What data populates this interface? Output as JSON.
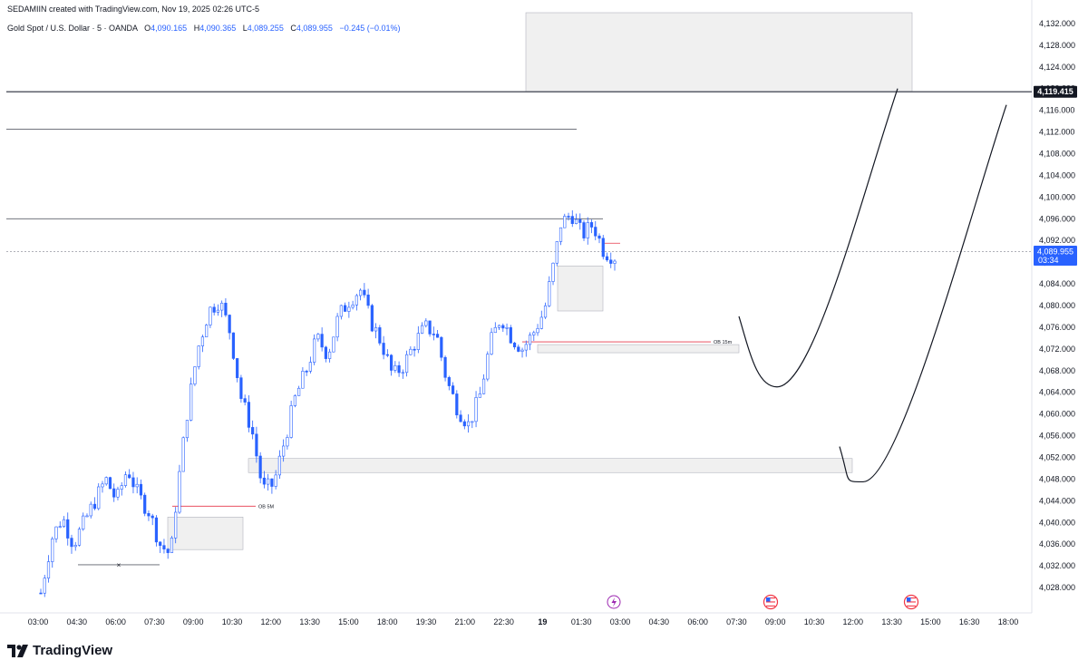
{
  "header": {
    "attribution": "SEDAMIIN created with TradingView.com, Nov 19, 2025 02:26 UTC-5",
    "symbol": "Gold Spot / U.S. Dollar · 5 · OANDA",
    "o_label": "O",
    "o_value": "4,090.165",
    "h_label": "H",
    "h_value": "4,090.365",
    "l_label": "L",
    "l_value": "4,089.255",
    "c_label": "C",
    "c_value": "4,089.955",
    "change": "−0.245 (−0.01%)"
  },
  "brand": {
    "name": "TradingView"
  },
  "colors": {
    "candle": "#2962ff",
    "zone_fill": "#f0f0f0",
    "level_line": "#5d606b",
    "ob_line": "#e5394b",
    "price_badge": "#2962ff",
    "level_badge": "#131722"
  },
  "chart_data": {
    "type": "candlestick",
    "ylim": [
      4024,
      4134
    ],
    "y_ticks": [
      "4,028.000",
      "4,032.000",
      "4,036.000",
      "4,040.000",
      "4,044.000",
      "4,048.000",
      "4,052.000",
      "4,056.000",
      "4,060.000",
      "4,064.000",
      "4,068.000",
      "4,072.000",
      "4,076.000",
      "4,080.000",
      "4,084.000",
      "4,088.000",
      "4,092.000",
      "4,096.000",
      "4,100.000",
      "4,104.000",
      "4,108.000",
      "4,112.000",
      "4,116.000",
      "4,120.000",
      "4,124.000",
      "4,128.000",
      "4,132.000"
    ],
    "x_ticks": [
      "03:00",
      "04:30",
      "06:00",
      "07:30",
      "09:00",
      "10:30",
      "12:00",
      "13:30",
      "15:00",
      "18:00",
      "19:30",
      "21:00",
      "22:30",
      "19",
      "01:30",
      "03:00",
      "04:30",
      "06:00",
      "07:30",
      "09:00",
      "10:30",
      "12:00",
      "13:30",
      "15:00",
      "16:30",
      "18:00"
    ],
    "current_price": {
      "value": 4089.955,
      "label": "4,089.955",
      "countdown": "03:34"
    },
    "marked_level": {
      "value": 4119.415,
      "label": "4,119.415"
    },
    "price_path": [
      [
        0,
        4027
      ],
      [
        2,
        4037
      ],
      [
        4,
        4041
      ],
      [
        6,
        4036
      ],
      [
        8,
        4040
      ],
      [
        10,
        4044
      ],
      [
        12,
        4048
      ],
      [
        14,
        4044
      ],
      [
        16,
        4050
      ],
      [
        18,
        4045
      ],
      [
        20,
        4042
      ],
      [
        22,
        4036
      ],
      [
        24,
        4034
      ],
      [
        25,
        4044
      ],
      [
        27,
        4060
      ],
      [
        29,
        4072
      ],
      [
        31,
        4079
      ],
      [
        33,
        4081
      ],
      [
        35,
        4075
      ],
      [
        37,
        4063
      ],
      [
        39,
        4057
      ],
      [
        41,
        4046
      ],
      [
        43,
        4047
      ],
      [
        45,
        4055
      ],
      [
        47,
        4063
      ],
      [
        49,
        4068
      ],
      [
        51,
        4074
      ],
      [
        53,
        4071
      ],
      [
        55,
        4078
      ],
      [
        57,
        4081
      ],
      [
        59,
        4083
      ],
      [
        61,
        4077
      ],
      [
        63,
        4073
      ],
      [
        65,
        4067
      ],
      [
        67,
        4069
      ],
      [
        69,
        4073
      ],
      [
        71,
        4076
      ],
      [
        73,
        4075
      ],
      [
        75,
        4066
      ],
      [
        77,
        4061
      ],
      [
        79,
        4058
      ],
      [
        81,
        4063
      ],
      [
        83,
        4073
      ],
      [
        85,
        4078
      ],
      [
        87,
        4074
      ],
      [
        89,
        4072
      ],
      [
        91,
        4075
      ],
      [
        93,
        4079
      ],
      [
        95,
        4089
      ],
      [
        96,
        4095
      ],
      [
        98,
        4097
      ],
      [
        100,
        4093
      ],
      [
        102,
        4095
      ],
      [
        104,
        4090
      ],
      [
        106,
        4089
      ]
    ],
    "annotations": {
      "horizontal_lines": [
        4119.415,
        4112.5,
        4096.0
      ],
      "zones": [
        {
          "from": 4119.5,
          "to": 4134
        },
        {
          "from": 4079.0,
          "to": 4087.3
        },
        {
          "from": 4071.3,
          "to": 4072.8
        },
        {
          "from": 4049.2,
          "to": 4051.8
        },
        {
          "from": 4035.0,
          "to": 4041.0
        }
      ],
      "order_blocks": [
        {
          "label": "OB 15m",
          "value": 4073.3
        },
        {
          "label": "OB 5M",
          "value": 4043.0
        }
      ],
      "projected_curves": [
        {
          "start": 4078,
          "low": 4065,
          "end": 4120
        },
        {
          "start": 4054,
          "low": 4047.5,
          "end": 4117
        }
      ],
      "low_marker": "×"
    },
    "event_icons": [
      "lightning-icon",
      "us-flag-icon",
      "us-flag-icon"
    ]
  }
}
